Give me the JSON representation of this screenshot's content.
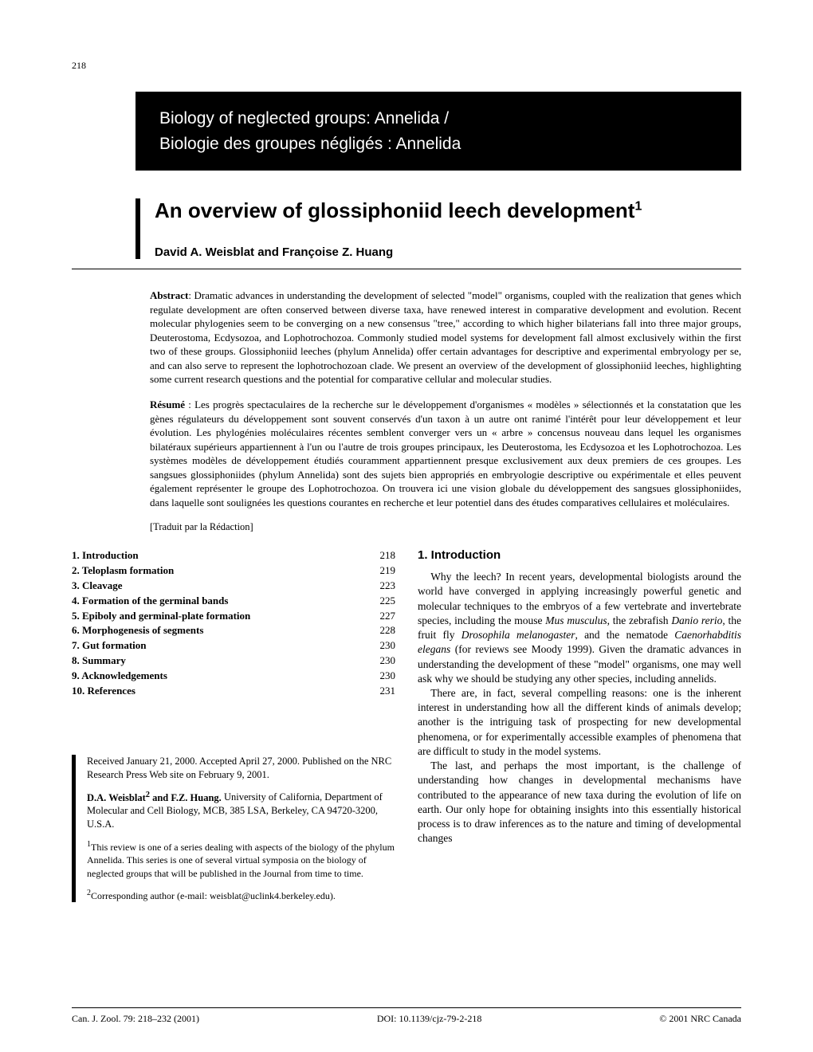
{
  "page_number": "218",
  "series_banner": {
    "line1": "Biology of neglected groups: Annelida /",
    "line2": "Biologie des groupes négligés : Annelida"
  },
  "title": "An overview of glossiphoniid leech development",
  "title_sup": "1",
  "authors": "David A. Weisblat and Françoise Z. Huang",
  "abstract": {
    "label": "Abstract",
    "text": ": Dramatic advances in understanding the development of selected \"model\" organisms, coupled with the realization that genes which regulate development are often conserved between diverse taxa, have renewed interest in comparative development and evolution. Recent molecular phylogenies seem to be converging on a new consensus \"tree,\" according to which higher bilaterians fall into three major groups, Deuterostoma, Ecdysozoa, and Lophotrochozoa. Commonly studied model systems for development fall almost exclusively within the first two of these groups. Glossiphoniid leeches (phylum Annelida) offer certain advantages for descriptive and experimental embryology per se, and can also serve to represent the lophotrochozoan clade. We present an overview of the development of glossiphoniid leeches, highlighting some current research questions and the potential for comparative cellular and molecular studies."
  },
  "resume": {
    "label": "Résumé",
    "text": " : Les progrès spectaculaires de la recherche sur le développement d'organismes « modèles » sélectionnés et la constatation que les gènes régulateurs du développement sont souvent conservés d'un taxon à un autre ont ranimé l'intérêt pour leur développement et leur évolution. Les phylogénies moléculaires récentes semblent converger vers un « arbre » concensus nouveau dans lequel les organismes bilatéraux supérieurs appartiennent à l'un ou l'autre de trois groupes principaux, les Deuterostoma, les Ecdysozoa et les Lophotrochozoa. Les systèmes modèles de développement étudiés couramment appartiennent presque exclusivement aux deux premiers de ces groupes. Les sangsues glossiphoniides (phylum Annelida) sont des sujets bien appropriés en embryologie descriptive ou expérimentale et elles peuvent également représenter le groupe des Lophotrochozoa. On trouvera ici une vision globale du développement des sangsues glossiphoniides, dans laquelle sont soulignées les questions courantes en recherche et leur potentiel dans des études comparatives cellulaires et moléculaires."
  },
  "traduit": "[Traduit par la Rédaction]",
  "toc": [
    {
      "label": "1. Introduction",
      "page": "218"
    },
    {
      "label": "2. Teloplasm formation",
      "page": "219"
    },
    {
      "label": "3. Cleavage",
      "page": "223"
    },
    {
      "label": "4. Formation of the germinal bands",
      "page": "225"
    },
    {
      "label": "5. Epiboly and germinal-plate formation",
      "page": "227"
    },
    {
      "label": "6. Morphogenesis of segments",
      "page": "228"
    },
    {
      "label": "7. Gut formation",
      "page": "230"
    },
    {
      "label": "8. Summary",
      "page": "230"
    },
    {
      "label": "9. Acknowledgements",
      "page": "230"
    },
    {
      "label": "10. References",
      "page": "231"
    }
  ],
  "info_box": {
    "received": "Received January 21, 2000. Accepted April 27, 2000. Published on the NRC Research Press Web site on February 9, 2001.",
    "affil_names": "D.A. Weisblat",
    "affil_sup1": "2",
    "affil_rest": " and F.Z. Huang.",
    "affil_body": " University of California, Department of Molecular and Cell Biology, MCB, 385 LSA, Berkeley, CA 94720-3200, U.S.A.",
    "note1_sup": "1",
    "note1": "This review is one of a series dealing with aspects of the biology of the phylum Annelida. This series is one of several virtual symposia on the biology of neglected groups that will be published in the Journal from time to time.",
    "note2_sup": "2",
    "note2": "Corresponding author (e-mail: weisblat@uclink4.berkeley.edu)."
  },
  "section1": {
    "heading": "1. Introduction",
    "para1a": "Why the leech? In recent years, developmental biologists around the world have converged in applying increasingly powerful genetic and molecular techniques to the embryos of a few vertebrate and invertebrate species, including the mouse ",
    "sp1": "Mus musculus",
    "para1b": ", the zebrafish ",
    "sp2": "Danio rerio",
    "para1c": ", the fruit fly ",
    "sp3": "Drosophila melanogaster",
    "para1d": ", and the nematode ",
    "sp4": "Caenorhabditis elegans",
    "para1e": " (for reviews see Moody 1999). Given the dramatic advances in understanding the development of these \"model\" organisms, one may well ask why we should be studying any other species, including annelids.",
    "para2": "There are, in fact, several compelling reasons: one is the inherent interest in understanding how all the different kinds of animals develop; another is the intriguing task of prospecting for new developmental phenomena, or for experimentally accessible examples of phenomena that are difficult to study in the model systems.",
    "para3": "The last, and perhaps the most important, is the challenge of understanding how changes in developmental mechanisms have contributed to the appearance of new taxa during the evolution of life on earth. Our only hope for obtaining insights into this essentially historical process is to draw inferences as to the nature and timing of developmental changes"
  },
  "footer": {
    "left": "Can. J. Zool. 79: 218–232 (2001)",
    "center": "DOI: 10.1139/cjz-79-2-218",
    "right": "© 2001 NRC Canada"
  },
  "colors": {
    "background": "#ffffff",
    "text": "#000000",
    "banner_bg": "#000000",
    "banner_text": "#ffffff"
  },
  "typography": {
    "body_font": "Times New Roman",
    "heading_font": "Helvetica",
    "title_fontsize_pt": 26,
    "body_fontsize_pt": 13,
    "banner_fontsize_pt": 21
  }
}
